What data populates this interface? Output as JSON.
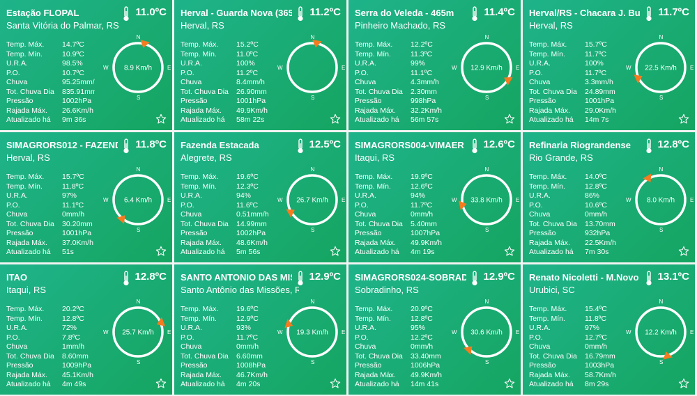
{
  "labels": {
    "temp_max": "Temp. Máx.",
    "temp_min": "Temp. Mín.",
    "ura": "U.R.A.",
    "po": "P.O.",
    "chuva": "Chuva",
    "tot_chuva": "Tot. Chuva Dia",
    "pressao": "Pressão",
    "rajada": "Rajada Máx.",
    "atualizado": "Atualizado há"
  },
  "compass_labels": {
    "n": "N",
    "s": "S",
    "e": "E",
    "w": "W"
  },
  "icons": {
    "thermometer": "thermometer-icon",
    "favorite": "star-outline-icon"
  },
  "colors": {
    "card_light": "#1fb38a",
    "card_dark": "#15a561",
    "arrow": "#f47b20",
    "text": "#ffffff"
  },
  "stations": [
    {
      "name": "Estação FLOPAL",
      "location": "Santa Vitória do Palmar, RS",
      "temp": "11.0ºC",
      "wind": "8.9 Km/h",
      "wind_dir_deg": 15,
      "temp_max": "14.7ºC",
      "temp_min": "10.9ºC",
      "ura": "98.5%",
      "po": "10.7ºC",
      "chuva": "95.25mm/h",
      "tot_chuva": "835.91mm",
      "pressao": "1002hPa",
      "rajada": "26.6Km/h",
      "atualizado": "9m 36s"
    },
    {
      "name": "Herval - Guarda Nova (365",
      "location": "Herval, RS",
      "temp": "11.2ºC",
      "wind": "",
      "wind_dir_deg": 10,
      "temp_max": "15.2ºC",
      "temp_min": "11.0ºC",
      "ura": "100%",
      "po": "11.2ºC",
      "chuva": "8.4mm/h",
      "tot_chuva": "26.90mm",
      "pressao": "1001hPa",
      "rajada": "49.9Km/h",
      "atualizado": "58m 22s"
    },
    {
      "name": "Serra do Veleda - 465m",
      "location": "Pinheiro Machado, RS",
      "temp": "11.4ºC",
      "wind": "12.9 Km/h",
      "wind_dir_deg": 120,
      "temp_max": "12.2ºC",
      "temp_min": "11.3ºC",
      "ura": "99%",
      "po": "11.1ºC",
      "chuva": "4.3mm/h",
      "tot_chuva": "2.30mm",
      "pressao": "998hPa",
      "rajada": "32.2Km/h",
      "atualizado": "56m 57s"
    },
    {
      "name": "Herval/RS - Chacara J. Bu",
      "location": "Herval, RS",
      "temp": "11.7ºC",
      "wind": "22.5 Km/h",
      "wind_dir_deg": 245,
      "temp_max": "15.7ºC",
      "temp_min": "11.7ºC",
      "ura": "100%",
      "po": "11.7ºC",
      "chuva": "3.3mm/h",
      "tot_chuva": "24.89mm",
      "pressao": "1001hPa",
      "rajada": "29.0Km/h",
      "atualizado": "14m 7s"
    },
    {
      "name": "SIMAGRORS012 - FAZEND",
      "location": "Herval, RS",
      "temp": "11.8ºC",
      "wind": "6.4 Km/h",
      "wind_dir_deg": 220,
      "temp_max": "15.7ºC",
      "temp_min": "11.8ºC",
      "ura": "97%",
      "po": "11.1ºC",
      "chuva": "0mm/h",
      "tot_chuva": "30.20mm",
      "pressao": "1001hPa",
      "rajada": "37.0Km/h",
      "atualizado": "51s"
    },
    {
      "name": "Fazenda Estacada",
      "location": "Alegrete, RS",
      "temp": "12.5ºC",
      "wind": "26.7 Km/h",
      "wind_dir_deg": 240,
      "temp_max": "19.6ºC",
      "temp_min": "12.3ºC",
      "ura": "94%",
      "po": "11.6ºC",
      "chuva": "0.51mm/h",
      "tot_chuva": "14.99mm",
      "pressao": "1002hPa",
      "rajada": "48.6Km/h",
      "atualizado": "5m 56s"
    },
    {
      "name": "SIMAGRORS004-VIMAER",
      "location": "Itaqui, RS",
      "temp": "12.6ºC",
      "wind": "33.8 Km/h",
      "wind_dir_deg": 258,
      "temp_max": "19.9ºC",
      "temp_min": "12.6ºC",
      "ura": "94%",
      "po": "11.7ºC",
      "chuva": "0mm/h",
      "tot_chuva": "5.40mm",
      "pressao": "1007hPa",
      "rajada": "49.9Km/h",
      "atualizado": "4m 19s"
    },
    {
      "name": "Refinaria Riograndense",
      "location": "Rio Grande, RS",
      "temp": "12.8ºC",
      "wind": "8.0 Km/h",
      "wind_dir_deg": 330,
      "temp_max": "14.0ºC",
      "temp_min": "12.8ºC",
      "ura": "86%",
      "po": "10.6ºC",
      "chuva": "0mm/h",
      "tot_chuva": "13.70mm",
      "pressao": "932hPa",
      "rajada": "22.5Km/h",
      "atualizado": "7m 30s"
    },
    {
      "name": "ITAO",
      "location": "Itaqui, RS",
      "temp": "12.8ºC",
      "wind": "25.7 Km/h",
      "wind_dir_deg": 68,
      "temp_max": "20.2ºC",
      "temp_min": "12.8ºC",
      "ura": "72%",
      "po": "7.8ºC",
      "chuva": "1mm/h",
      "tot_chuva": "8.60mm",
      "pressao": "1009hPa",
      "rajada": "45.1Km/h",
      "atualizado": "4m 49s"
    },
    {
      "name": "SANTO ANTONIO DAS MIS",
      "location": "Santo Antônio das Missões, R",
      "temp": "12.9ºC",
      "wind": "19.3 Km/h",
      "wind_dir_deg": 288,
      "temp_max": "19.6ºC",
      "temp_min": "12.9ºC",
      "ura": "93%",
      "po": "11.7ºC",
      "chuva": "0mm/h",
      "tot_chuva": "6.60mm",
      "pressao": "1008hPa",
      "rajada": "46.7Km/h",
      "atualizado": "4m 20s"
    },
    {
      "name": "SIMAGRORS024-SOBRADI",
      "location": "Sobradinho, RS",
      "temp": "12.9ºC",
      "wind": "30.6 Km/h",
      "wind_dir_deg": 225,
      "temp_max": "20.9ºC",
      "temp_min": "12.8ºC",
      "ura": "95%",
      "po": "12.2ºC",
      "chuva": "0mm/h",
      "tot_chuva": "33.40mm",
      "pressao": "1006hPa",
      "rajada": "49.9Km/h",
      "atualizado": "14m 41s"
    },
    {
      "name": "Renato Nicoletti - M.Novo",
      "location": "Urubici, SC",
      "temp": "13.1ºC",
      "wind": "12.2 Km/h",
      "wind_dir_deg": 165,
      "temp_max": "15.4ºC",
      "temp_min": "11.8ºC",
      "ura": "97%",
      "po": "12.7ºC",
      "chuva": "0mm/h",
      "tot_chuva": "16.79mm",
      "pressao": "1003hPa",
      "rajada": "58.7Km/h",
      "atualizado": "8m 29s"
    }
  ]
}
